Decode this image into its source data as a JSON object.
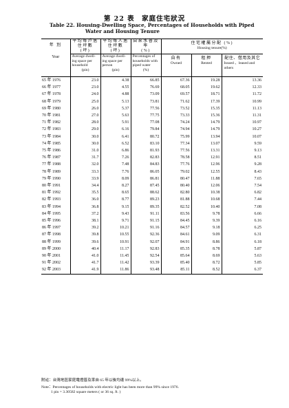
{
  "title_zh": "第 22 表　家庭住宅狀況",
  "title_en_line1": "Table 22.   Housing-Dwelling Space, Percentages of Households with Piped",
  "title_en_line2": "Water and Housing Tenure",
  "headers": {
    "year_zh": "年 別",
    "year_en": "Year",
    "space_hh_zh": "平均每戶居住坪數",
    "space_hh_unit": "(坪)",
    "space_hh_en": "Average dwell-ing space per household",
    "space_hh_en_unit": "(pin)",
    "space_pp_zh": "平均每人居住坪數",
    "space_pp_unit": "(坪)",
    "space_pp_en": "Average dwell-ing space per person",
    "space_pp_en_unit": "(pin)",
    "water_zh": "自來水普及率",
    "water_unit": "(%)",
    "water_en": "Percentages of households with piped water",
    "water_en_unit": "(%)",
    "tenure_zh": "住宅權屬分配",
    "tenure_unit": "(%)",
    "tenure_en": "Housing tenure(%)",
    "owned_zh": "自有",
    "owned_en": "Owned",
    "rented_zh": "租押",
    "rented_en": "Rented",
    "issued_zh": "配住、借用及其它",
    "issued_en": "Issued 、leased and others"
  },
  "rows": [
    {
      "year": "65 年 1976",
      "hh": "23.0",
      "pp": "4.38",
      "water": "66.85",
      "owned": "67.36",
      "rented": "19.28",
      "issued": "13.36"
    },
    {
      "year": "66 年 1977",
      "hh": "23.0",
      "pp": "4.55",
      "water": "76.69",
      "owned": "68.05",
      "rented": "19.62",
      "issued": "12.33"
    },
    {
      "year": "67 年 1978",
      "hh": "24.0",
      "pp": "4.88",
      "water": "73.09",
      "owned": "69.57",
      "rented": "18.71",
      "issued": "11.72"
    },
    {
      "year": "68 年 1979",
      "hh": "25.0",
      "pp": "5.13",
      "water": "73.81",
      "owned": "71.62",
      "rented": "17.39",
      "issued": "10.99"
    },
    {
      "year": "69 年 1980",
      "hh": "26.0",
      "pp": "5.37",
      "water": "77.56",
      "owned": "73.52",
      "rented": "15.35",
      "issued": "11.13"
    },
    {
      "year": "70 年 1981",
      "hh": "27.0",
      "pp": "5.63",
      "water": "77.75",
      "owned": "73.33",
      "rented": "15.36",
      "issued": "11.31"
    },
    {
      "year": "71 年 1982",
      "hh": "28.0",
      "pp": "5.91",
      "water": "77.08",
      "owned": "74.24",
      "rented": "14.79",
      "issued": "10.97"
    },
    {
      "year": "72 年 1983",
      "hh": "29.0",
      "pp": "6.16",
      "water": "79.84",
      "owned": "74.94",
      "rented": "14.79",
      "issued": "10.27"
    },
    {
      "year": "73 年 1984",
      "hh": "30.0",
      "pp": "6.41",
      "water": "80.72",
      "owned": "75.99",
      "rented": "13.94",
      "issued": "10.07"
    },
    {
      "year": "74 年 1985",
      "hh": "30.0",
      "pp": "6.52",
      "water": "83.10",
      "owned": "77.34",
      "rented": "13.07",
      "issued": "9.59"
    },
    {
      "year": "75 年 1986",
      "hh": "31.0",
      "pp": "6.86",
      "water": "81.93",
      "owned": "77.56",
      "rented": "13.31",
      "issued": "9.13"
    },
    {
      "year": "76 年 1987",
      "hh": "31.7",
      "pp": "7.26",
      "water": "82.83",
      "owned": "78.58",
      "rented": "12.91",
      "issued": "8.51"
    },
    {
      "year": "77 年 1988",
      "hh": "32.0",
      "pp": "7.48",
      "water": "84.83",
      "owned": "77.76",
      "rented": "12.96",
      "issued": "9.28"
    },
    {
      "year": "78 年 1989",
      "hh": "33.3",
      "pp": "7.76",
      "water": "86.05",
      "owned": "79.02",
      "rented": "12.55",
      "issued": "8.43"
    },
    {
      "year": "79 年 1990",
      "hh": "33.9",
      "pp": "8.09",
      "water": "86.81",
      "owned": "80.47",
      "rented": "11.88",
      "issued": "7.65"
    },
    {
      "year": "80 年 1991",
      "hh": "34.4",
      "pp": "8.27",
      "water": "87.45",
      "owned": "80.40",
      "rented": "12.06",
      "issued": "7.54"
    },
    {
      "year": "81 年 1992",
      "hh": "35.5",
      "pp": "8.65",
      "water": "88.62",
      "owned": "82.80",
      "rented": "10.38",
      "issued": "6.82"
    },
    {
      "year": "82 年 1993",
      "hh": "36.0",
      "pp": "8.77",
      "water": "89.23",
      "owned": "81.88",
      "rented": "10.68",
      "issued": "7.44"
    },
    {
      "year": "83 年 1994",
      "hh": "36.8",
      "pp": "9.15",
      "water": "89.35",
      "owned": "82.52",
      "rented": "10.40",
      "issued": "7.08"
    },
    {
      "year": "84 年 1995",
      "hh": "37.2",
      "pp": "9.43",
      "water": "91.11",
      "owned": "83.56",
      "rented": "9.78",
      "issued": "6.66"
    },
    {
      "year": "85 年 1996",
      "hh": "38.1",
      "pp": "9.71",
      "water": "91.15",
      "owned": "84.45",
      "rented": "9.39",
      "issued": "6.16"
    },
    {
      "year": "86 年 1997",
      "hh": "39.2",
      "pp": "10.21",
      "water": "91.16",
      "owned": "84.57",
      "rented": "9.18",
      "issued": "6.25"
    },
    {
      "year": "87 年 1998",
      "hh": "39.8",
      "pp": "10.55",
      "water": "92.36",
      "owned": "84.61",
      "rented": "9.09",
      "issued": "6.31"
    },
    {
      "year": "88 年 1999",
      "hh": "39.6",
      "pp": "10.91",
      "water": "92.07",
      "owned": "84.91",
      "rented": "8.86",
      "issued": "6.18"
    },
    {
      "year": "89 年 2000",
      "hh": "40.4",
      "pp": "11.17",
      "water": "92.83",
      "owned": "85.35",
      "rented": "8.78",
      "issued": "5.87"
    },
    {
      "year": "90 年 2001",
      "hh": "41.0",
      "pp": "11.45",
      "water": "92.54",
      "owned": "85.64",
      "rented": "8.69",
      "issued": "5.63"
    },
    {
      "year": "91 年 2002",
      "hh": "41.7",
      "pp": "11.42",
      "water": "93.39",
      "owned": "85.40",
      "rented": "8.72",
      "issued": "5.85"
    },
    {
      "year": "92 年 2003",
      "hh": "41.9",
      "pp": "11.86",
      "water": "93.48",
      "owned": "85.11",
      "rented": "8.52",
      "issued": "6.37"
    }
  ],
  "notes": {
    "zh": "附註：台灣地區家庭電燈普及率自 65 年以後均達 99%以上。",
    "en1": "Note：Percentages of households with electric light has been more than 99% since 1976.",
    "en2": "1 pin = 3.30582 square meters ( or 36 sq. ft. )"
  }
}
